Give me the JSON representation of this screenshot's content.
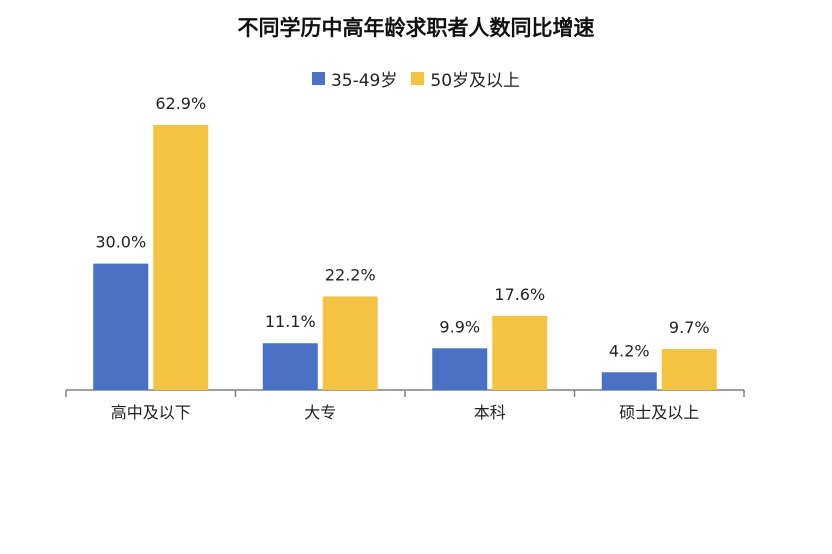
{
  "colors": {
    "series1": "#4a72c4",
    "series2": "#f4c342",
    "axis": "#808080"
  },
  "chart_data": {
    "type": "bar",
    "title": "不同学历中高年龄求职者人数同比增速",
    "categories": [
      "高中及以下",
      "大专",
      "本科",
      "硕士及以上"
    ],
    "series": [
      {
        "name": "35-49岁",
        "values": [
          30.0,
          11.1,
          9.9,
          4.2
        ],
        "labels": [
          "30.0%",
          "11.1%",
          "9.9%",
          "4.2%"
        ]
      },
      {
        "name": "50岁及以上",
        "values": [
          62.9,
          22.2,
          17.6,
          9.7
        ],
        "labels": [
          "62.9%",
          "22.2%",
          "17.6%",
          "9.7%"
        ]
      }
    ],
    "ylim": [
      0,
      62.9
    ],
    "grid": false,
    "legend_position": "top"
  }
}
